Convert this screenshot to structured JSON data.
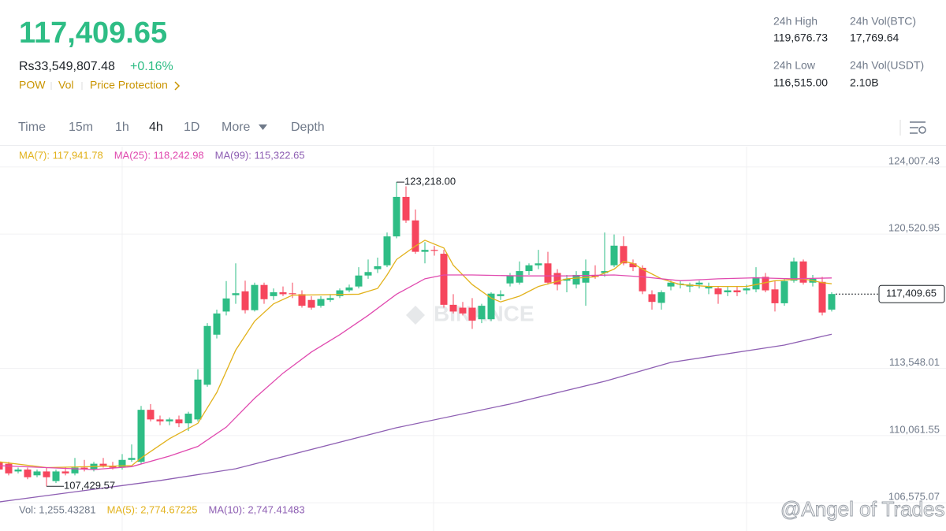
{
  "header": {
    "price": "117,409.65",
    "local_price": "Rs33,549,807.48",
    "change": "+0.16%",
    "tags": [
      "POW",
      "Vol",
      "Price Protection"
    ],
    "stats": [
      {
        "label": "24h High",
        "value": "119,676.73"
      },
      {
        "label": "24h Vol(BTC)",
        "value": "17,769.64"
      },
      {
        "label": "24h Low",
        "value": "116,515.00"
      },
      {
        "label": "24h Vol(USDT)",
        "value": "2.10B"
      }
    ]
  },
  "tabs": [
    "Time",
    "15m",
    "1h",
    "4h",
    "1D",
    "More",
    "Depth"
  ],
  "chart_data": {
    "type": "candlestick",
    "price_tag": "117,409.65",
    "high_label": "123,218.00",
    "low_label": "107,429.57",
    "watermark": "BINANCE",
    "credit": "@Angel of Trades",
    "ylim": [
      106500,
      124900
    ],
    "yticks": [
      {
        "value": 124007.43,
        "label": "124,007.43"
      },
      {
        "value": 120520.95,
        "label": "120,520.95"
      },
      {
        "value": 113548.01,
        "label": "113,548.01"
      },
      {
        "value": 110061.55,
        "label": "110,061.55"
      },
      {
        "value": 106575.07,
        "label": "106,575.07"
      }
    ],
    "last_price": 117409.65,
    "volume_legend": [
      {
        "text": "Vol: 1,255.43281",
        "color": "#707a8a"
      },
      {
        "text": "MA(5): 2,774.67225",
        "color": "#e2b21c"
      },
      {
        "text": "MA(10): 2,747.41483",
        "color": "#8e5fb3"
      }
    ],
    "up_color": "#2ebd85",
    "down_color": "#f6465d",
    "candles": [
      [
        108700,
        108800,
        108200,
        108300
      ],
      [
        108600,
        108700,
        108000,
        108100
      ],
      [
        108200,
        108400,
        108100,
        108300
      ],
      [
        108300,
        108400,
        107800,
        107900
      ],
      [
        108000,
        108300,
        107900,
        108200
      ],
      [
        108200,
        108400,
        107430,
        107900
      ],
      [
        107700,
        108300,
        107600,
        108200
      ],
      [
        108200,
        108400,
        108000,
        108100
      ],
      [
        108100,
        108900,
        108000,
        108400
      ],
      [
        108400,
        108800,
        108200,
        108300
      ],
      [
        108300,
        108700,
        108200,
        108600
      ],
      [
        108600,
        108900,
        108400,
        108500
      ],
      [
        108500,
        108700,
        108300,
        108400
      ],
      [
        108400,
        109100,
        108300,
        108800
      ],
      [
        108800,
        109600,
        108700,
        108900
      ],
      [
        108700,
        111600,
        108600,
        111400
      ],
      [
        111400,
        111700,
        110800,
        110900
      ],
      [
        110900,
        111100,
        110600,
        110800
      ],
      [
        110800,
        111000,
        110600,
        110900
      ],
      [
        110900,
        111100,
        110500,
        110700
      ],
      [
        110700,
        111300,
        110300,
        111200
      ],
      [
        110900,
        113500,
        110800,
        112970
      ],
      [
        112700,
        115900,
        112600,
        115750
      ],
      [
        115300,
        116600,
        115100,
        116400
      ],
      [
        116500,
        118080,
        116300,
        117180
      ],
      [
        117350,
        119000,
        116900,
        117450
      ],
      [
        117550,
        118100,
        116400,
        116570
      ],
      [
        116570,
        118000,
        116500,
        117880
      ],
      [
        117880,
        118000,
        116900,
        117140
      ],
      [
        117300,
        117700,
        117100,
        117500
      ],
      [
        117500,
        117800,
        117300,
        117400
      ],
      [
        117450,
        118000,
        117200,
        117400
      ],
      [
        117400,
        117600,
        116700,
        116800
      ],
      [
        117100,
        117300,
        116600,
        116700
      ],
      [
        116800,
        117300,
        116700,
        117150
      ],
      [
        117100,
        117400,
        117000,
        117200
      ],
      [
        117300,
        117700,
        117200,
        117600
      ],
      [
        117600,
        117900,
        117500,
        117750
      ],
      [
        117800,
        118800,
        117700,
        118370
      ],
      [
        118370,
        119200,
        118200,
        118550
      ],
      [
        118700,
        119300,
        118500,
        118850
      ],
      [
        118900,
        120600,
        118800,
        120400
      ],
      [
        120400,
        123218,
        120300,
        122450
      ],
      [
        122450,
        123000,
        121100,
        121230
      ],
      [
        121230,
        121800,
        119500,
        119600
      ],
      [
        119600,
        120100,
        119000,
        119700
      ],
      [
        119700,
        119900,
        119400,
        119650
      ],
      [
        119500,
        119700,
        116700,
        116850
      ],
      [
        116850,
        117400,
        116400,
        116500
      ],
      [
        116700,
        117000,
        116300,
        116400
      ],
      [
        116700,
        117200,
        115600,
        116030
      ],
      [
        116100,
        116900,
        115900,
        116800
      ],
      [
        116100,
        117500,
        116000,
        117430
      ],
      [
        117300,
        117600,
        117100,
        117400
      ],
      [
        117960,
        118500,
        117800,
        118370
      ],
      [
        118000,
        119100,
        117900,
        118600
      ],
      [
        118600,
        119000,
        118400,
        118900
      ],
      [
        118900,
        119700,
        118700,
        119000
      ],
      [
        119000,
        119600,
        117900,
        118000
      ],
      [
        118500,
        118700,
        117600,
        117900
      ],
      [
        118100,
        118400,
        117500,
        118200
      ],
      [
        117900,
        118600,
        117700,
        118400
      ],
      [
        118000,
        119200,
        116800,
        118600
      ],
      [
        118400,
        118900,
        118200,
        118300
      ],
      [
        118500,
        120600,
        118300,
        118600
      ],
      [
        118900,
        120500,
        118800,
        119920
      ],
      [
        119900,
        120400,
        118900,
        119000
      ],
      [
        119000,
        119200,
        118600,
        118800
      ],
      [
        118770,
        118900,
        117400,
        117550
      ],
      [
        117400,
        117600,
        116600,
        117000
      ],
      [
        116950,
        117600,
        116600,
        117500
      ],
      [
        117800,
        118100,
        117600,
        118000
      ],
      [
        117900,
        118100,
        117700,
        117950
      ],
      [
        117800,
        118000,
        117500,
        117900
      ],
      [
        117900,
        118100,
        117700,
        118000
      ],
      [
        117700,
        118000,
        117400,
        117800
      ],
      [
        117700,
        117800,
        116900,
        117400
      ],
      [
        117500,
        117800,
        117300,
        117600
      ],
      [
        117600,
        117800,
        117300,
        117500
      ],
      [
        117600,
        117900,
        117400,
        117700
      ],
      [
        117650,
        118800,
        117500,
        118280
      ],
      [
        118300,
        118500,
        117500,
        117600
      ],
      [
        117650,
        118100,
        116500,
        116930
      ],
      [
        116930,
        118200,
        116800,
        118080
      ],
      [
        118100,
        119300,
        118000,
        119100
      ],
      [
        119100,
        119200,
        117900,
        118000
      ],
      [
        118000,
        118400,
        117800,
        118200
      ],
      [
        118040,
        118300,
        116300,
        116450
      ],
      [
        116600,
        117500,
        116500,
        117409.65
      ]
    ],
    "series": [
      {
        "name": "MA(7): 117,941.78",
        "color": "#e2b21c",
        "x": [
          0,
          5,
          14,
          15,
          18,
          21,
          23,
          25,
          27,
          29,
          31,
          38,
          40,
          41,
          42,
          44,
          45,
          47,
          48,
          50,
          52,
          53,
          55,
          57,
          60,
          63,
          65,
          66,
          67,
          68,
          70,
          72,
          75,
          79,
          80,
          82,
          85,
          87,
          88
        ],
        "values": [
          108700,
          108400,
          108500,
          108900,
          109900,
          110700,
          112300,
          114500,
          116000,
          116900,
          117350,
          117400,
          117700,
          118400,
          119200,
          119900,
          120200,
          119800,
          118900,
          117900,
          117200,
          117000,
          117300,
          117800,
          118200,
          118300,
          118700,
          119100,
          119000,
          118700,
          118200,
          117900,
          117800,
          117800,
          117900,
          118100,
          118200,
          118000,
          117941.78
        ]
      },
      {
        "name": "MA(25): 118,242.98",
        "color": "#e04aaf",
        "x": [
          0,
          10,
          14,
          18,
          21,
          24,
          27,
          30,
          33,
          36,
          39,
          42,
          45,
          47,
          50,
          55,
          60,
          65,
          68,
          72,
          76,
          80,
          84,
          88
        ],
        "values": [
          108500,
          108300,
          108450,
          109000,
          109500,
          110500,
          112000,
          113300,
          114400,
          115300,
          116300,
          117400,
          118200,
          118400,
          118400,
          118350,
          118350,
          118400,
          118300,
          118100,
          118200,
          118250,
          118200,
          118242.98
        ]
      },
      {
        "name": "MA(99): 115,322.65",
        "color": "#8e5fb3",
        "x": [
          0,
          17,
          25,
          42,
          54,
          64,
          71,
          83,
          88
        ],
        "values": [
          106620,
          107730,
          108340,
          110470,
          111700,
          112880,
          113860,
          114760,
          115322.65
        ]
      }
    ]
  }
}
